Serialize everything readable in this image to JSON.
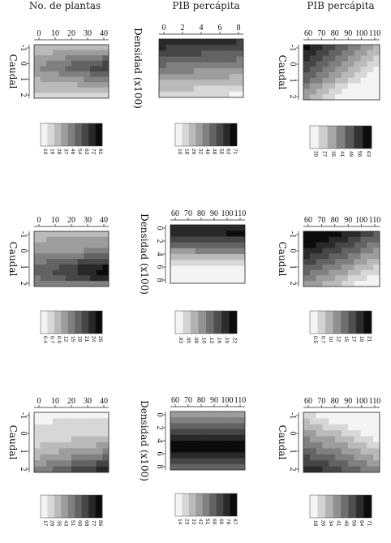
{
  "chart_data": {
    "type": "heatmap",
    "column_headers": [
      "No. de plantas",
      "PIB percápita",
      "PIB percápita"
    ],
    "grayscale": {
      "low": "#f4f4f4",
      "high": "#0c0c0c"
    },
    "panels": [
      {
        "id": "r1c1",
        "axis_top": "",
        "axis_side": "Caudal",
        "x_ticks": [
          "0",
          "10",
          "20",
          "30",
          "40"
        ],
        "y_ticks": [
          "-1",
          "0",
          "1",
          "2"
        ],
        "legend": [
          "10",
          "19",
          "28",
          "37",
          "46",
          "54",
          "63",
          "72",
          "81"
        ]
      },
      {
        "id": "r1c2",
        "axis_top": "",
        "axis_side": "Densidad (x100)",
        "x_ticks": [
          "0",
          "2",
          "4",
          "6",
          "8"
        ],
        "y_ticks": [],
        "legend": [
          "10",
          "18",
          "26",
          "32",
          "40",
          "48",
          "55",
          "63",
          "71"
        ]
      },
      {
        "id": "r1c3",
        "axis_top": "",
        "axis_side": "Caudal",
        "x_ticks": [
          "60",
          "70",
          "80",
          "90",
          "100",
          "110"
        ],
        "y_ticks": [
          "-1",
          "0",
          "1",
          "2"
        ],
        "legend": [
          "20",
          "27",
          "35",
          "41",
          "49",
          "56",
          "63"
        ]
      },
      {
        "id": "r2c1",
        "axis_top": "",
        "axis_side": "Caudal",
        "x_ticks": [
          "0",
          "10",
          "20",
          "30",
          "40"
        ],
        "y_ticks": [
          "-1",
          "0",
          "1",
          "2"
        ],
        "legend": [
          "0.4",
          "0.7",
          "0.9",
          "12",
          "15",
          "18",
          "21",
          "24",
          "26"
        ]
      },
      {
        "id": "r2c2",
        "axis_top": "Densidad (x100)",
        "axis_side": "",
        "x_ticks": [
          "60",
          "70",
          "80",
          "90",
          "100",
          "110"
        ],
        "y_ticks": [
          "0",
          "2",
          "4",
          "6",
          "8"
        ],
        "legend": [
          ".03",
          ".05",
          ".08",
          ".10",
          ".13",
          ".16",
          ".19",
          ".22"
        ]
      },
      {
        "id": "r2c3",
        "axis_top": "",
        "axis_side": "Caudal",
        "x_ticks": [
          "60",
          "70",
          "80",
          "90",
          "100",
          "110"
        ],
        "y_ticks": [
          "-1",
          "0",
          "1",
          "2"
        ],
        "legend": [
          "0.5",
          "0.7",
          "10",
          "12",
          "15",
          "17",
          "19",
          "21"
        ]
      },
      {
        "id": "r3c1",
        "axis_top": "",
        "axis_side": "Caudal",
        "x_ticks": [
          "0",
          "10",
          "20",
          "30",
          "40"
        ],
        "y_ticks": [
          "-1",
          "0",
          "1",
          "2"
        ],
        "legend": [
          "17",
          "26",
          "35",
          "43",
          "51",
          "60",
          "68",
          "77",
          "86"
        ]
      },
      {
        "id": "r3c2",
        "axis_top": "Densidad (x100)",
        "axis_side": "",
        "x_ticks": [
          "60",
          "70",
          "80",
          "90",
          "100",
          "110"
        ],
        "y_ticks": [
          "0",
          "2",
          "4",
          "6",
          "8"
        ],
        "legend": [
          "14",
          "23",
          "33",
          "42",
          "51",
          "60",
          "69",
          "78",
          "87"
        ]
      },
      {
        "id": "r3c3",
        "axis_top": "",
        "axis_side": "Caudal",
        "x_ticks": [
          "60",
          "70",
          "80",
          "90",
          "100",
          "110"
        ],
        "y_ticks": [
          "-1",
          "0",
          "1",
          "2"
        ],
        "legend": [
          "18",
          "26",
          "34",
          "41",
          "49",
          "56",
          "64",
          "71"
        ]
      }
    ]
  }
}
